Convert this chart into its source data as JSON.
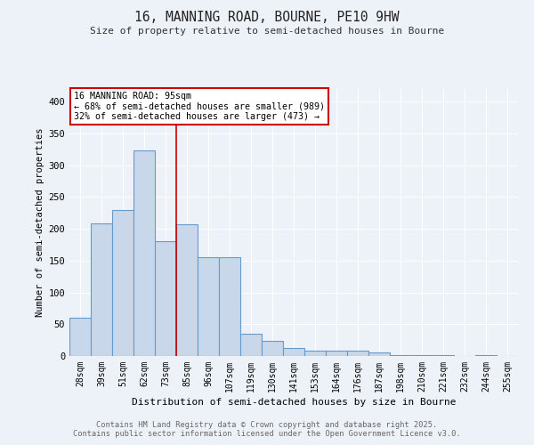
{
  "title1": "16, MANNING ROAD, BOURNE, PE10 9HW",
  "title2": "Size of property relative to semi-detached houses in Bourne",
  "xlabel": "Distribution of semi-detached houses by size in Bourne",
  "ylabel": "Number of semi-detached properties",
  "categories": [
    "28sqm",
    "39sqm",
    "51sqm",
    "62sqm",
    "73sqm",
    "85sqm",
    "96sqm",
    "107sqm",
    "119sqm",
    "130sqm",
    "141sqm",
    "153sqm",
    "164sqm",
    "176sqm",
    "187sqm",
    "198sqm",
    "210sqm",
    "221sqm",
    "232sqm",
    "244sqm",
    "255sqm"
  ],
  "values": [
    60,
    209,
    229,
    323,
    181,
    207,
    155,
    155,
    35,
    24,
    12,
    9,
    8,
    8,
    5,
    1,
    1,
    1,
    0,
    1,
    0
  ],
  "bar_color": "#c8d8ea",
  "bar_edge_color": "#6699cc",
  "property_bin_index": 5,
  "annotation_title": "16 MANNING ROAD: 95sqm",
  "annotation_line1": "← 68% of semi-detached houses are smaller (989)",
  "annotation_line2": "32% of semi-detached houses are larger (473) →",
  "vline_color": "#cc0000",
  "annotation_box_edge_color": "#cc0000",
  "ylim": [
    0,
    420
  ],
  "yticks": [
    0,
    50,
    100,
    150,
    200,
    250,
    300,
    350,
    400
  ],
  "bg_color": "#edf2f8",
  "grid_color": "#ffffff",
  "footer1": "Contains HM Land Registry data © Crown copyright and database right 2025.",
  "footer2": "Contains public sector information licensed under the Open Government Licence v3.0."
}
